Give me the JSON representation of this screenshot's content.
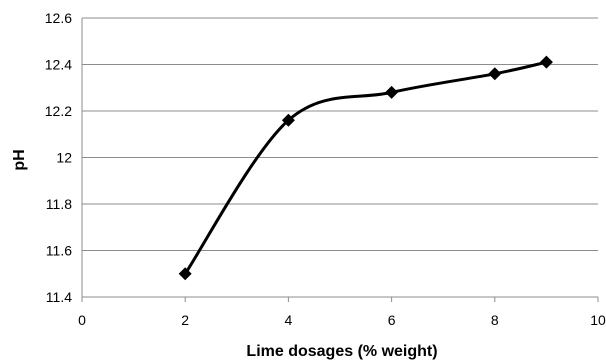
{
  "chart_data": {
    "type": "line",
    "title": "",
    "xlabel": "Lime dosages (% weight)",
    "ylabel": "pH",
    "xlim": [
      0,
      10
    ],
    "ylim": [
      11.4,
      12.6
    ],
    "xticks": [
      "0",
      "2",
      "4",
      "6",
      "8",
      "10"
    ],
    "yticks": [
      "11.4",
      "11.6",
      "11.8",
      "12",
      "12.2",
      "12.4",
      "12.6"
    ],
    "grid": "horizontal",
    "legend": "none",
    "smooth": true,
    "marker": "diamond",
    "line_color": "#000000",
    "series": [
      {
        "x": [
          2,
          4,
          6,
          8,
          9
        ],
        "values": [
          11.5,
          12.16,
          12.28,
          12.36,
          12.41
        ]
      }
    ]
  }
}
